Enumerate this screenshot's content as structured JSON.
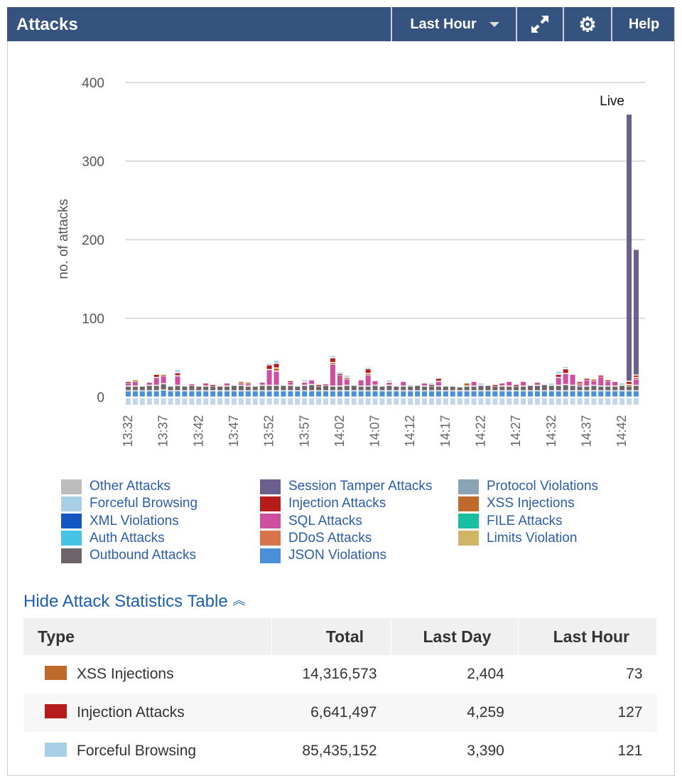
{
  "header": {
    "title": "Attacks",
    "range": "Last Hour",
    "help": "Help"
  },
  "colors": {
    "header": "#36527f",
    "json": "#4a8fd8",
    "outbound": "#6d6469",
    "sql": "#cc4fa0",
    "xss": "#c0692d",
    "injection": "#b71c1c",
    "forceful": "#a9cfe6",
    "session": "#6b5f8e"
  },
  "chart_data": {
    "type": "bar",
    "stacked": true,
    "ylabel": "no. of attacks",
    "ylim": [
      0,
      400
    ],
    "yticks": [
      0,
      100,
      200,
      300,
      400
    ],
    "live_label": "Live",
    "x_labels": [
      "13:32",
      "13:37",
      "13:42",
      "13:47",
      "13:52",
      "13:57",
      "14:02",
      "14:07",
      "14:12",
      "14:17",
      "14:22",
      "14:27",
      "14:32",
      "14:37",
      "14:42"
    ],
    "label_every": 5,
    "series": [
      {
        "name": "JSON Violations",
        "color": "#4a8fd8",
        "values": [
          8,
          8,
          8,
          8,
          8,
          9,
          8,
          8,
          8,
          8,
          8,
          8,
          8,
          8,
          8,
          8,
          8,
          8,
          8,
          8,
          8,
          8,
          8,
          8,
          8,
          8,
          8,
          8,
          8,
          8,
          8,
          8,
          8,
          8,
          8,
          8,
          8,
          8,
          8,
          8,
          8,
          8,
          8,
          8,
          8,
          8,
          8,
          8,
          8,
          8,
          8,
          8,
          8,
          8,
          8,
          8,
          8,
          8,
          8,
          8,
          8,
          8,
          8,
          8,
          8,
          8,
          8,
          8,
          8,
          8,
          8,
          8,
          8
        ]
      },
      {
        "name": "Outbound Attacks",
        "color": "#6d6469",
        "values": [
          6,
          6,
          6,
          7,
          7,
          8,
          6,
          7,
          6,
          7,
          6,
          6,
          6,
          6,
          6,
          7,
          7,
          6,
          6,
          7,
          7,
          7,
          7,
          7,
          6,
          7,
          8,
          6,
          7,
          6,
          6,
          7,
          7,
          6,
          6,
          7,
          6,
          7,
          6,
          6,
          6,
          7,
          6,
          6,
          6,
          6,
          6,
          5,
          6,
          6,
          7,
          7,
          6,
          6,
          6,
          6,
          6,
          7,
          7,
          8,
          7,
          7,
          8,
          7,
          6,
          6,
          7,
          6,
          6,
          6,
          7,
          6,
          7
        ]
      },
      {
        "name": "SQL Attacks",
        "color": "#cc4fa0",
        "values": [
          4,
          6,
          0,
          4,
          10,
          10,
          0,
          12,
          0,
          2,
          0,
          4,
          0,
          0,
          4,
          0,
          3,
          3,
          0,
          4,
          20,
          18,
          0,
          4,
          0,
          4,
          6,
          0,
          2,
          28,
          14,
          8,
          0,
          8,
          14,
          6,
          0,
          4,
          0,
          6,
          0,
          0,
          4,
          0,
          6,
          0,
          0,
          0,
          0,
          6,
          0,
          0,
          0,
          4,
          6,
          0,
          6,
          0,
          4,
          0,
          0,
          10,
          14,
          14,
          2,
          8,
          6,
          12,
          6,
          6,
          0,
          0,
          8
        ]
      },
      {
        "name": "XSS Injections",
        "color": "#c0692d",
        "values": [
          0,
          2,
          0,
          0,
          0,
          2,
          0,
          0,
          0,
          0,
          0,
          0,
          0,
          0,
          0,
          0,
          2,
          2,
          0,
          0,
          0,
          4,
          0,
          0,
          0,
          0,
          0,
          0,
          0,
          2,
          0,
          2,
          0,
          0,
          2,
          0,
          0,
          0,
          0,
          0,
          0,
          0,
          0,
          0,
          0,
          0,
          0,
          0,
          4,
          0,
          0,
          0,
          0,
          0,
          0,
          0,
          0,
          0,
          0,
          0,
          0,
          0,
          0,
          0,
          2,
          0,
          2,
          0,
          0,
          0,
          0,
          2,
          2
        ]
      },
      {
        "name": "Injection Attacks",
        "color": "#b71c1c",
        "values": [
          2,
          0,
          0,
          0,
          4,
          0,
          0,
          4,
          0,
          0,
          0,
          0,
          2,
          0,
          0,
          0,
          0,
          0,
          0,
          0,
          6,
          6,
          0,
          2,
          0,
          0,
          0,
          2,
          0,
          6,
          2,
          0,
          0,
          0,
          6,
          0,
          0,
          0,
          0,
          0,
          0,
          0,
          0,
          2,
          4,
          0,
          0,
          0,
          0,
          0,
          0,
          0,
          2,
          0,
          0,
          2,
          0,
          0,
          0,
          0,
          0,
          4,
          6,
          0,
          2,
          2,
          0,
          2,
          2,
          0,
          0,
          4,
          3
        ]
      },
      {
        "name": "Forceful Browsing",
        "color": "#a9cfe6",
        "values": [
          0,
          0,
          0,
          0,
          0,
          0,
          0,
          4,
          0,
          0,
          0,
          0,
          0,
          0,
          0,
          0,
          0,
          0,
          0,
          0,
          2,
          4,
          0,
          0,
          0,
          3,
          0,
          0,
          0,
          3,
          2,
          3,
          0,
          0,
          2,
          0,
          0,
          3,
          0,
          0,
          2,
          0,
          0,
          2,
          0,
          0,
          0,
          0,
          0,
          0,
          3,
          0,
          0,
          0,
          0,
          0,
          0,
          0,
          0,
          0,
          3,
          4,
          3,
          0,
          0,
          0,
          0,
          0,
          0,
          0,
          3,
          0,
          0
        ]
      },
      {
        "name": "Session Tamper Attacks",
        "color": "#6b5f8e",
        "values": [
          0,
          0,
          0,
          0,
          0,
          0,
          0,
          0,
          0,
          0,
          0,
          0,
          0,
          0,
          0,
          0,
          0,
          0,
          0,
          0,
          0,
          0,
          0,
          0,
          0,
          0,
          0,
          0,
          0,
          0,
          0,
          0,
          0,
          0,
          0,
          0,
          0,
          0,
          0,
          0,
          0,
          0,
          0,
          0,
          0,
          0,
          0,
          0,
          0,
          0,
          0,
          0,
          0,
          0,
          0,
          0,
          0,
          0,
          0,
          0,
          0,
          0,
          0,
          0,
          0,
          0,
          0,
          0,
          0,
          0,
          0,
          340,
          160
        ]
      }
    ]
  },
  "legend": [
    {
      "label": "Other Attacks",
      "color": "#bdbdbd"
    },
    {
      "label": "Forceful Browsing",
      "color": "#a9cfe6"
    },
    {
      "label": "XML Violations",
      "color": "#1557c0"
    },
    {
      "label": "Auth Attacks",
      "color": "#45c4e6"
    },
    {
      "label": "Outbound Attacks",
      "color": "#6d6469"
    },
    {
      "label": "Session Tamper Attacks",
      "color": "#6b5f8e"
    },
    {
      "label": "Injection Attacks",
      "color": "#b71c1c"
    },
    {
      "label": "SQL Attacks",
      "color": "#cc4fa0"
    },
    {
      "label": "DDoS Attacks",
      "color": "#d9744a"
    },
    {
      "label": "JSON Violations",
      "color": "#4a8fd8"
    },
    {
      "label": "Protocol Violations",
      "color": "#8aa3b5"
    },
    {
      "label": "XSS Injections",
      "color": "#c0692d"
    },
    {
      "label": "FILE Attacks",
      "color": "#19bfa0"
    },
    {
      "label": "Limits Violation",
      "color": "#cfb565"
    }
  ],
  "table_toggle": "Hide Attack Statistics Table",
  "table": {
    "headers": [
      "Type",
      "Total",
      "Last Day",
      "Last Hour"
    ],
    "rows": [
      {
        "type": "XSS Injections",
        "color": "#c0692d",
        "total": "14,316,573",
        "day": "2,404",
        "hour": "73"
      },
      {
        "type": "Injection Attacks",
        "color": "#b71c1c",
        "total": "6,641,497",
        "day": "4,259",
        "hour": "127"
      },
      {
        "type": "Forceful Browsing",
        "color": "#a9cfe6",
        "total": "85,435,152",
        "day": "3,390",
        "hour": "121"
      }
    ]
  }
}
